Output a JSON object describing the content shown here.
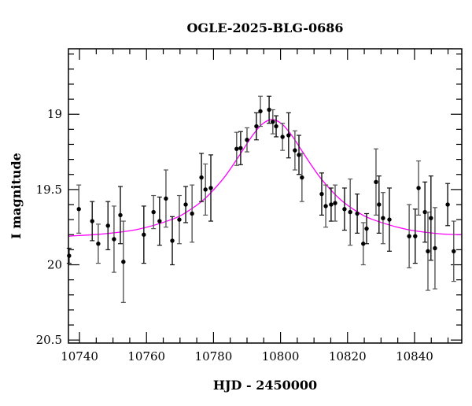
{
  "chart_data": {
    "type": "scatter",
    "title": "OGLE-2025-BLG-0686",
    "xlabel": "HJD - 2450000",
    "ylabel": "I magnitude",
    "xlim": [
      10736.7,
      10854.1
    ],
    "ylim": [
      20.52,
      18.565
    ],
    "y_inverted": true,
    "grid": false,
    "x_ticks": [
      10740,
      10760,
      10780,
      10800,
      10820,
      10840
    ],
    "x_tick_labels": [
      "10740",
      "10760",
      "10780",
      "10800",
      "10820",
      "10840"
    ],
    "y_ticks": [
      19,
      19.5,
      20,
      20.5
    ],
    "y_tick_labels": [
      "19",
      "19.5",
      "20",
      "20.5"
    ],
    "colors": {
      "points": "#000000",
      "model": "#ff00ff"
    },
    "points": [
      [
        10736.9,
        19.94,
        0.05
      ],
      [
        10739.8,
        19.63,
        0.16
      ],
      [
        10743.8,
        19.71,
        0.13
      ],
      [
        10745.6,
        19.86,
        0.13
      ],
      [
        10748.5,
        19.74,
        0.16
      ],
      [
        10750.3,
        19.83,
        0.22
      ],
      [
        10752.2,
        19.67,
        0.19
      ],
      [
        10753.1,
        19.98,
        0.27
      ],
      [
        10759.2,
        19.8,
        0.19
      ],
      [
        10762.1,
        19.65,
        0.11
      ],
      [
        10763.9,
        19.71,
        0.16
      ],
      [
        10765.8,
        19.56,
        0.19
      ],
      [
        10767.7,
        19.84,
        0.16
      ],
      [
        10769.8,
        19.7,
        0.16
      ],
      [
        10771.7,
        19.6,
        0.12
      ],
      [
        10773.6,
        19.66,
        0.19
      ],
      [
        10776.4,
        19.42,
        0.16
      ],
      [
        10777.6,
        19.5,
        0.17
      ],
      [
        10779.2,
        19.49,
        0.22
      ],
      [
        10786.9,
        19.23,
        0.11
      ],
      [
        10788.1,
        19.225,
        0.11
      ],
      [
        10790.0,
        19.17,
        0.08
      ],
      [
        10792.8,
        19.08,
        0.09
      ],
      [
        10794.0,
        18.98,
        0.1
      ],
      [
        10796.6,
        18.97,
        0.09
      ],
      [
        10797.7,
        19.05,
        0.08
      ],
      [
        10798.7,
        19.08,
        0.07
      ],
      [
        10800.6,
        19.15,
        0.09
      ],
      [
        10802.4,
        19.14,
        0.15
      ],
      [
        10804.3,
        19.24,
        0.13
      ],
      [
        10805.5,
        19.27,
        0.13
      ],
      [
        10806.4,
        19.42,
        0.16
      ],
      [
        10812.3,
        19.53,
        0.14
      ],
      [
        10813.5,
        19.61,
        0.14
      ],
      [
        10815.1,
        19.6,
        0.11
      ],
      [
        10816.3,
        19.59,
        0.12
      ],
      [
        10819.1,
        19.63,
        0.14
      ],
      [
        10820.8,
        19.65,
        0.22
      ],
      [
        10822.9,
        19.66,
        0.13
      ],
      [
        10824.7,
        19.86,
        0.14
      ],
      [
        10825.7,
        19.76,
        0.1
      ],
      [
        10828.5,
        19.45,
        0.22
      ],
      [
        10829.4,
        19.6,
        0.19
      ],
      [
        10830.6,
        19.69,
        0.17
      ],
      [
        10832.5,
        19.7,
        0.21
      ],
      [
        10838.4,
        19.81,
        0.21
      ],
      [
        10840.2,
        19.81,
        0.18
      ],
      [
        10841.2,
        19.49,
        0.18
      ],
      [
        10843.1,
        19.65,
        0.2
      ],
      [
        10844.0,
        19.91,
        0.26
      ],
      [
        10844.9,
        19.69,
        0.28
      ],
      [
        10846.1,
        19.89,
        0.27
      ],
      [
        10849.9,
        19.6,
        0.14
      ],
      [
        10851.7,
        19.91,
        0.2
      ]
    ],
    "model_curve": [
      [
        10736.7,
        19.81
      ],
      [
        10747.5,
        19.794
      ],
      [
        10757.5,
        19.764
      ],
      [
        10767.5,
        19.699
      ],
      [
        10772.5,
        19.642
      ],
      [
        10777.5,
        19.559
      ],
      [
        10782.5,
        19.439
      ],
      [
        10785.5,
        19.348
      ],
      [
        10788.5,
        19.247
      ],
      [
        10791.5,
        19.145
      ],
      [
        10794.5,
        19.066
      ],
      [
        10797.5,
        19.035
      ],
      [
        10800.5,
        19.066
      ],
      [
        10803.5,
        19.145
      ],
      [
        10806.5,
        19.247
      ],
      [
        10809.5,
        19.348
      ],
      [
        10812.5,
        19.439
      ],
      [
        10817.5,
        19.559
      ],
      [
        10822.5,
        19.642
      ],
      [
        10827.5,
        19.699
      ],
      [
        10837.5,
        19.764
      ],
      [
        10847.5,
        19.794
      ],
      [
        10854.1,
        19.8
      ]
    ]
  }
}
